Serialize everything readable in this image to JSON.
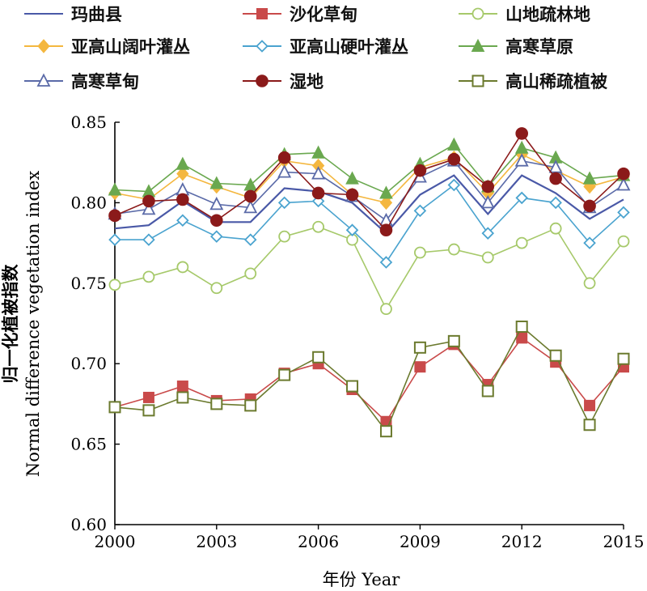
{
  "chart_data": {
    "type": "line",
    "x": [
      2000,
      2001,
      2002,
      2003,
      2004,
      2005,
      2006,
      2007,
      2008,
      2009,
      2010,
      2011,
      2012,
      2013,
      2014,
      2015
    ],
    "xlim": [
      2000,
      2015
    ],
    "ylim": [
      0.6,
      0.85
    ],
    "xticks": [
      "2000",
      "2003",
      "2006",
      "2009",
      "2012",
      "2015"
    ],
    "yticks": [
      "0.60",
      "0.65",
      "0.70",
      "0.75",
      "0.80",
      "0.85"
    ],
    "xlabel": "年份 Year",
    "ylabel_cn": "归一化植被指数",
    "ylabel_en": "Normal difference vegetation index",
    "grid": false,
    "legend_position": "top",
    "series": [
      {
        "name": "玛曲县",
        "color": "#4a59a7",
        "marker": "none",
        "values": [
          0.784,
          0.786,
          0.801,
          0.788,
          0.788,
          0.809,
          0.807,
          0.8,
          0.781,
          0.805,
          0.817,
          0.793,
          0.817,
          0.806,
          0.79,
          0.802
        ]
      },
      {
        "name": "沙化草甸",
        "color": "#c94a4a",
        "marker": "square-filled",
        "values": [
          0.673,
          0.679,
          0.686,
          0.677,
          0.678,
          0.694,
          0.7,
          0.684,
          0.664,
          0.698,
          0.712,
          0.687,
          0.716,
          0.701,
          0.674,
          0.698
        ]
      },
      {
        "name": "山地疏林地",
        "color": "#a6c96a",
        "marker": "circle-open",
        "values": [
          0.749,
          0.754,
          0.76,
          0.747,
          0.756,
          0.779,
          0.785,
          0.777,
          0.734,
          0.769,
          0.771,
          0.766,
          0.775,
          0.784,
          0.75,
          0.776
        ]
      },
      {
        "name": "亚高山阔叶灌丛",
        "color": "#f4b73f",
        "marker": "diamond-filled",
        "values": [
          0.806,
          0.802,
          0.818,
          0.81,
          0.803,
          0.826,
          0.823,
          0.805,
          0.8,
          0.822,
          0.828,
          0.806,
          0.83,
          0.82,
          0.81,
          0.816
        ]
      },
      {
        "name": "亚高山硬叶灌丛",
        "color": "#4aa3cf",
        "marker": "diamond-open",
        "values": [
          0.777,
          0.777,
          0.789,
          0.779,
          0.777,
          0.8,
          0.801,
          0.783,
          0.763,
          0.795,
          0.811,
          0.781,
          0.803,
          0.8,
          0.775,
          0.794
        ]
      },
      {
        "name": "高寒草原",
        "color": "#6aa84f",
        "marker": "triangle-filled",
        "values": [
          0.808,
          0.807,
          0.824,
          0.812,
          0.811,
          0.83,
          0.831,
          0.815,
          0.806,
          0.824,
          0.836,
          0.81,
          0.834,
          0.828,
          0.815,
          0.817
        ]
      },
      {
        "name": "高寒草甸",
        "color": "#5a6aa8",
        "marker": "triangle-open",
        "values": [
          0.793,
          0.796,
          0.808,
          0.799,
          0.797,
          0.819,
          0.818,
          0.804,
          0.789,
          0.816,
          0.826,
          0.8,
          0.826,
          0.822,
          0.797,
          0.811
        ]
      },
      {
        "name": "湿地",
        "color": "#8b1a1a",
        "marker": "circle-filled",
        "values": [
          0.792,
          0.801,
          0.802,
          0.789,
          0.804,
          0.828,
          0.806,
          0.805,
          0.783,
          0.82,
          0.827,
          0.81,
          0.843,
          0.815,
          0.798,
          0.818
        ]
      },
      {
        "name": "高山稀疏植被",
        "color": "#6b7a2e",
        "marker": "square-open",
        "values": [
          0.673,
          0.671,
          0.679,
          0.675,
          0.674,
          0.693,
          0.704,
          0.686,
          0.658,
          0.71,
          0.714,
          0.683,
          0.723,
          0.705,
          0.662,
          0.703
        ]
      }
    ]
  }
}
